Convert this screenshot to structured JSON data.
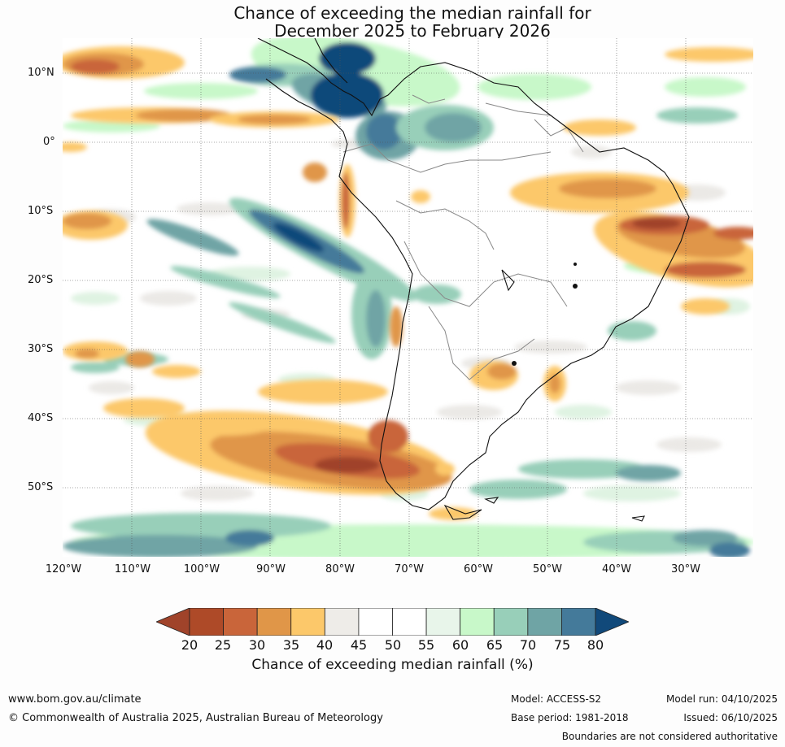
{
  "title": {
    "line1": "Chance of exceeding the median rainfall for",
    "line2": "December 2025 to February 2026"
  },
  "map": {
    "lat_labels": [
      "10°N",
      "0°",
      "10°S",
      "20°S",
      "30°S",
      "40°S",
      "50°S"
    ],
    "lon_labels": [
      "120°W",
      "110°W",
      "100°W",
      "90°W",
      "80°W",
      "70°W",
      "60°W",
      "50°W",
      "40°W",
      "30°W"
    ],
    "extent": {
      "lon_min": -120,
      "lon_max": -20.5,
      "lat_min": -60,
      "lat_max": 15
    },
    "anomaly_regions": [
      {
        "name": "caribbean-wet",
        "lon": -80,
        "lat": 9,
        "chance": 80
      },
      {
        "name": "colombia-wet",
        "lon": -73,
        "lat": 4,
        "chance": 75
      },
      {
        "name": "amazon-wet",
        "lon": -63,
        "lat": 3,
        "chance": 70
      },
      {
        "name": "pacific-band-wet",
        "lon": -90,
        "lat": -12,
        "chance": 75
      },
      {
        "name": "east-brazil-dry",
        "lon": -37,
        "lat": -12,
        "chance": 25
      },
      {
        "name": "southeast-brazil-dry",
        "lon": -35,
        "lat": -18,
        "chance": 30
      },
      {
        "name": "north-brazil-dry",
        "lon": -50,
        "lat": -5,
        "chance": 35
      },
      {
        "name": "patagonia-dry",
        "lon": -80,
        "lat": -45,
        "chance": 25
      },
      {
        "name": "pacific-south-dry",
        "lon": -95,
        "lat": -42,
        "chance": 35
      },
      {
        "name": "uruguay-dry",
        "lon": -58,
        "lat": -33,
        "chance": 35
      },
      {
        "name": "eastern-pacific-dry",
        "lon": -110,
        "lat": 10,
        "chance": 30
      },
      {
        "name": "southern-ocean-wet",
        "lon": -105,
        "lat": -58,
        "chance": 70
      }
    ]
  },
  "colorbar": {
    "ticks": [
      "20",
      "25",
      "30",
      "35",
      "40",
      "45",
      "50",
      "55",
      "60",
      "65",
      "70",
      "75",
      "80"
    ],
    "colors": [
      "#a0432a",
      "#ae4a28",
      "#c9653a",
      "#e09648",
      "#fcc86a",
      "#eeece8",
      "#ffffff",
      "#ffffff",
      "#e8f5ea",
      "#c8f8c9",
      "#98cfb9",
      "#6fa4a5",
      "#447a9a",
      "#11497a"
    ],
    "label": "Chance of exceeding median rainfall (%)"
  },
  "footer": {
    "website": "www.bom.gov.au/climate",
    "copyright": "© Commonwealth of Australia 2025, Australian Bureau of Meteorology",
    "model": "Model: ACCESS-S2",
    "base_period": "Base period: 1981-2018",
    "model_run": "Model run: 04/10/2025",
    "issued": "Issued: 06/10/2025",
    "disclaimer": "Boundaries are not considered authoritative"
  }
}
